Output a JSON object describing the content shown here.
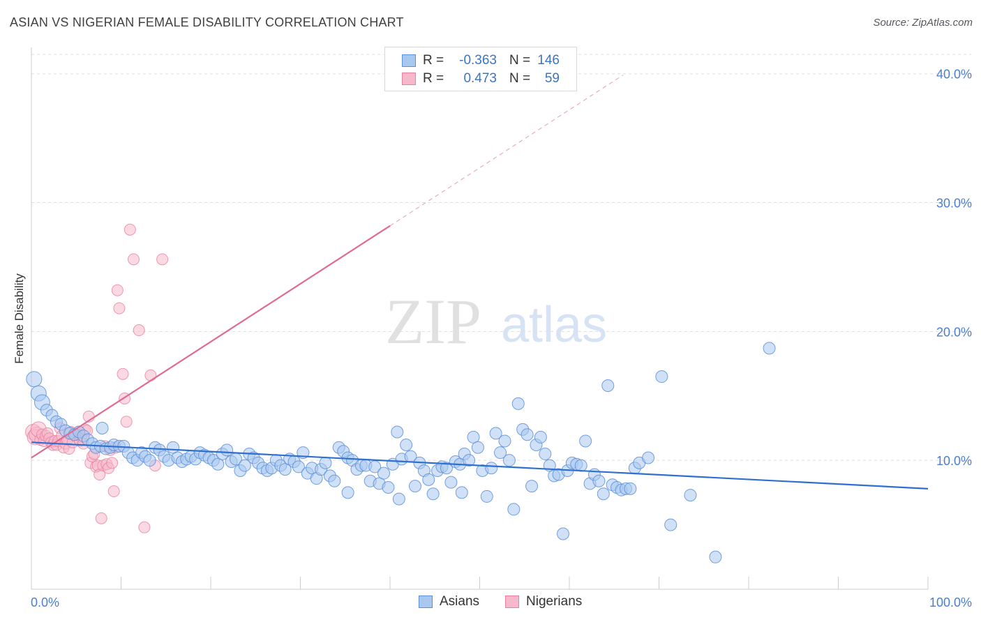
{
  "title": "ASIAN VS NIGERIAN FEMALE DISABILITY CORRELATION CHART",
  "source": "Source: ZipAtlas.com",
  "watermark": {
    "part1": "ZIP",
    "part2": "atlas"
  },
  "legend": {
    "rows": [
      {
        "label": "R =",
        "r": "-0.363",
        "nlabel": "N =",
        "n": "146"
      },
      {
        "label": "R =",
        "r": "0.473",
        "nlabel": "N =",
        "n": "59"
      }
    ]
  },
  "colors": {
    "asian_fill": "#a9c8f0",
    "asian_stroke": "#5b8fd9",
    "asian_line": "#2f6fd0",
    "nigerian_fill": "#f6b9cc",
    "nigerian_stroke": "#ea7fa0",
    "nigerian_line": "#e06a92",
    "grid": "#dddddd"
  },
  "chart_data": {
    "type": "scatter",
    "title": "ASIAN VS NIGERIAN FEMALE DISABILITY CORRELATION CHART",
    "xlabel": "",
    "ylabel": "Female Disability",
    "xlim": [
      0,
      100
    ],
    "ylim": [
      0,
      41.5
    ],
    "y_ticks": [
      {
        "value": 10,
        "label": "10.0%"
      },
      {
        "value": 20,
        "label": "20.0%"
      },
      {
        "value": 30,
        "label": "30.0%"
      },
      {
        "value": 40,
        "label": "40.0%"
      }
    ],
    "x_tick_labels": [
      {
        "value": 0,
        "label": "0.0%"
      },
      {
        "value": 100,
        "label": "100.0%"
      }
    ],
    "x_minor_ticks": [
      10,
      20,
      30,
      40,
      50,
      60,
      70,
      80,
      90,
      100
    ],
    "grid": true,
    "legend_position": "top-center",
    "series": [
      {
        "name": "Asians",
        "R": -0.363,
        "N": 146,
        "trend": {
          "x": [
            0,
            100
          ],
          "y": [
            11.4,
            7.8
          ]
        },
        "points": [
          [
            0.3,
            16.3
          ],
          [
            0.8,
            15.2
          ],
          [
            1.2,
            14.5
          ],
          [
            1.7,
            13.9
          ],
          [
            2.3,
            13.5
          ],
          [
            2.8,
            13.0
          ],
          [
            3.3,
            12.8
          ],
          [
            3.8,
            12.3
          ],
          [
            4.3,
            12.1
          ],
          [
            4.8,
            12.0
          ],
          [
            5.3,
            12.2
          ],
          [
            5.8,
            11.9
          ],
          [
            6.3,
            11.6
          ],
          [
            6.8,
            11.3
          ],
          [
            7.2,
            11.0
          ],
          [
            7.7,
            11.1
          ],
          [
            7.9,
            12.5
          ],
          [
            8.3,
            10.9
          ],
          [
            8.8,
            11.0
          ],
          [
            9.2,
            11.2
          ],
          [
            9.8,
            11.1
          ],
          [
            10.3,
            11.1
          ],
          [
            10.8,
            10.6
          ],
          [
            11.3,
            10.2
          ],
          [
            11.8,
            10.0
          ],
          [
            12.3,
            10.6
          ],
          [
            12.7,
            10.3
          ],
          [
            13.2,
            10.0
          ],
          [
            13.8,
            11.0
          ],
          [
            14.3,
            10.8
          ],
          [
            14.8,
            10.3
          ],
          [
            15.3,
            10.0
          ],
          [
            15.8,
            11.0
          ],
          [
            16.3,
            10.2
          ],
          [
            16.8,
            9.9
          ],
          [
            17.3,
            10.1
          ],
          [
            17.8,
            10.3
          ],
          [
            18.3,
            10.1
          ],
          [
            18.8,
            10.6
          ],
          [
            19.3,
            10.4
          ],
          [
            19.8,
            10.2
          ],
          [
            20.3,
            10.0
          ],
          [
            20.8,
            9.7
          ],
          [
            21.3,
            10.5
          ],
          [
            21.8,
            10.8
          ],
          [
            22.3,
            9.9
          ],
          [
            22.8,
            10.1
          ],
          [
            23.3,
            9.2
          ],
          [
            23.8,
            9.6
          ],
          [
            24.3,
            10.5
          ],
          [
            24.8,
            10.2
          ],
          [
            25.3,
            9.8
          ],
          [
            25.8,
            9.4
          ],
          [
            26.3,
            9.2
          ],
          [
            26.8,
            9.4
          ],
          [
            27.3,
            10.0
          ],
          [
            27.8,
            9.6
          ],
          [
            28.3,
            9.3
          ],
          [
            28.8,
            10.1
          ],
          [
            29.3,
            9.9
          ],
          [
            29.8,
            9.5
          ],
          [
            30.3,
            10.6
          ],
          [
            30.8,
            9.0
          ],
          [
            31.3,
            9.4
          ],
          [
            31.8,
            8.6
          ],
          [
            32.3,
            9.3
          ],
          [
            32.8,
            9.8
          ],
          [
            33.3,
            8.8
          ],
          [
            33.8,
            8.4
          ],
          [
            34.3,
            11.0
          ],
          [
            34.8,
            10.7
          ],
          [
            35.3,
            10.2
          ],
          [
            35.8,
            10.0
          ],
          [
            36.3,
            9.3
          ],
          [
            36.8,
            9.6
          ],
          [
            37.3,
            9.6
          ],
          [
            37.8,
            8.4
          ],
          [
            38.3,
            9.5
          ],
          [
            38.8,
            8.2
          ],
          [
            39.3,
            9.0
          ],
          [
            39.8,
            7.9
          ],
          [
            40.3,
            9.7
          ],
          [
            40.8,
            12.2
          ],
          [
            41.3,
            10.1
          ],
          [
            41.8,
            11.2
          ],
          [
            42.3,
            10.3
          ],
          [
            42.8,
            8.0
          ],
          [
            43.3,
            9.8
          ],
          [
            43.8,
            9.2
          ],
          [
            44.3,
            8.5
          ],
          [
            44.8,
            7.4
          ],
          [
            45.3,
            9.2
          ],
          [
            45.8,
            9.5
          ],
          [
            46.3,
            9.4
          ],
          [
            46.8,
            8.3
          ],
          [
            47.3,
            9.9
          ],
          [
            47.8,
            9.7
          ],
          [
            48.3,
            10.5
          ],
          [
            48.8,
            10.0
          ],
          [
            49.3,
            11.8
          ],
          [
            49.8,
            11.0
          ],
          [
            50.3,
            9.2
          ],
          [
            50.8,
            7.2
          ],
          [
            51.3,
            9.4
          ],
          [
            51.8,
            12.1
          ],
          [
            52.3,
            10.6
          ],
          [
            52.8,
            11.5
          ],
          [
            53.3,
            10.0
          ],
          [
            53.8,
            6.2
          ],
          [
            54.3,
            14.4
          ],
          [
            54.8,
            12.4
          ],
          [
            55.3,
            12.0
          ],
          [
            55.8,
            8.0
          ],
          [
            56.3,
            11.2
          ],
          [
            56.8,
            11.8
          ],
          [
            57.3,
            10.5
          ],
          [
            57.8,
            9.6
          ],
          [
            58.3,
            8.8
          ],
          [
            58.8,
            8.9
          ],
          [
            59.3,
            4.3
          ],
          [
            59.8,
            9.2
          ],
          [
            60.3,
            9.8
          ],
          [
            60.8,
            9.7
          ],
          [
            61.3,
            9.6
          ],
          [
            61.8,
            11.5
          ],
          [
            62.3,
            8.2
          ],
          [
            62.8,
            8.9
          ],
          [
            63.3,
            8.4
          ],
          [
            63.8,
            7.4
          ],
          [
            64.3,
            15.8
          ],
          [
            64.8,
            8.1
          ],
          [
            65.3,
            7.9
          ],
          [
            65.8,
            7.7
          ],
          [
            66.3,
            7.8
          ],
          [
            66.8,
            7.8
          ],
          [
            67.3,
            9.4
          ],
          [
            67.8,
            9.8
          ],
          [
            68.8,
            10.2
          ],
          [
            70.3,
            16.5
          ],
          [
            71.3,
            5.0
          ],
          [
            73.5,
            7.3
          ],
          [
            76.3,
            2.5
          ],
          [
            82.3,
            18.7
          ],
          [
            41.0,
            7.0
          ],
          [
            48.0,
            7.5
          ],
          [
            35.3,
            7.5
          ]
        ]
      },
      {
        "name": "Nigerians",
        "R": 0.473,
        "N": 59,
        "trend": {
          "x": [
            0,
            40
          ],
          "y": [
            10.2,
            28.2
          ]
        },
        "trend_extension": {
          "x": [
            40,
            66
          ],
          "y": [
            28.2,
            39.9
          ]
        },
        "points": [
          [
            0.2,
            12.2
          ],
          [
            0.4,
            11.8
          ],
          [
            0.6,
            12.0
          ],
          [
            0.8,
            12.4
          ],
          [
            1.0,
            11.6
          ],
          [
            1.2,
            12.0
          ],
          [
            1.4,
            11.5
          ],
          [
            1.6,
            11.9
          ],
          [
            1.8,
            12.1
          ],
          [
            2.0,
            11.7
          ],
          [
            2.2,
            11.4
          ],
          [
            2.4,
            11.2
          ],
          [
            2.6,
            11.5
          ],
          [
            2.8,
            11.2
          ],
          [
            3.0,
            11.5
          ],
          [
            3.2,
            12.5
          ],
          [
            3.4,
            11.9
          ],
          [
            3.6,
            11.0
          ],
          [
            3.8,
            11.3
          ],
          [
            4.0,
            11.6
          ],
          [
            4.2,
            10.9
          ],
          [
            4.4,
            12.2
          ],
          [
            4.6,
            11.4
          ],
          [
            4.8,
            12.0
          ],
          [
            5.0,
            11.8
          ],
          [
            5.2,
            12.0
          ],
          [
            5.4,
            11.5
          ],
          [
            5.6,
            11.8
          ],
          [
            5.8,
            11.3
          ],
          [
            6.0,
            12.4
          ],
          [
            6.2,
            12.3
          ],
          [
            6.4,
            13.4
          ],
          [
            6.6,
            9.8
          ],
          [
            6.8,
            10.3
          ],
          [
            7.0,
            10.5
          ],
          [
            7.2,
            9.5
          ],
          [
            7.4,
            9.6
          ],
          [
            7.6,
            8.9
          ],
          [
            7.8,
            5.5
          ],
          [
            8.0,
            9.6
          ],
          [
            8.2,
            11.1
          ],
          [
            8.4,
            9.7
          ],
          [
            8.6,
            9.4
          ],
          [
            8.8,
            10.8
          ],
          [
            9.0,
            9.8
          ],
          [
            9.2,
            7.6
          ],
          [
            9.4,
            11.0
          ],
          [
            9.6,
            23.2
          ],
          [
            9.8,
            21.8
          ],
          [
            10.2,
            16.7
          ],
          [
            10.4,
            14.8
          ],
          [
            10.6,
            13.0
          ],
          [
            11.0,
            27.9
          ],
          [
            11.4,
            25.6
          ],
          [
            12.0,
            20.1
          ],
          [
            13.3,
            16.6
          ],
          [
            12.6,
            4.8
          ],
          [
            13.8,
            9.6
          ],
          [
            14.6,
            25.6
          ]
        ]
      }
    ]
  }
}
